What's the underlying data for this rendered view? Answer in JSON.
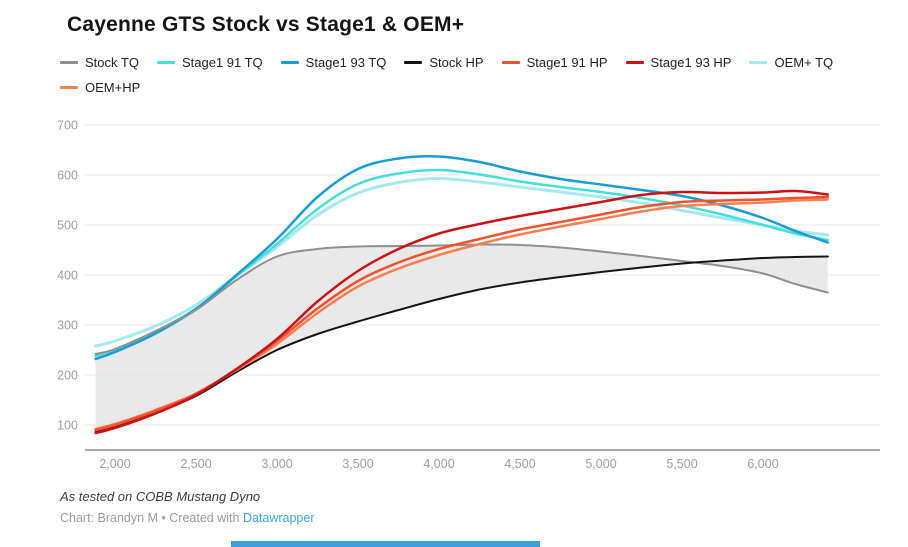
{
  "header": {
    "title": "Cayenne GTS Stock vs Stage1 & OEM+"
  },
  "footer": {
    "note": "As tested on COBB Mustang Dyno",
    "byline_prefix": "Chart: Brandyn M • Created with ",
    "link_label": "Datawrapper"
  },
  "colors": {
    "grid": "#e8e8e8",
    "axis": "#555555",
    "tick_label": "#9e9e9e",
    "link": "#3da5dc",
    "accent_bar": "#3f9fdb",
    "band_fill": "#e3e3e3"
  },
  "chart_data": {
    "type": "line",
    "title": "Cayenne GTS Stock vs Stage1 & OEM+",
    "xlabel": "",
    "ylabel": "",
    "grid": true,
    "legend_position": "top",
    "xlim": [
      1880,
      6720
    ],
    "ylim": [
      50,
      700
    ],
    "y_ticks": [
      100,
      200,
      300,
      400,
      500,
      600,
      700
    ],
    "x_ticks": [
      {
        "value": 2000,
        "label": "2,000"
      },
      {
        "value": 2500,
        "label": "2,500"
      },
      {
        "value": 3000,
        "label": "3,000"
      },
      {
        "value": 3500,
        "label": "3,500"
      },
      {
        "value": 4000,
        "label": "4,000"
      },
      {
        "value": 4500,
        "label": "4,500"
      },
      {
        "value": 5000,
        "label": "5,000"
      },
      {
        "value": 5500,
        "label": "5,500"
      },
      {
        "value": 6000,
        "label": "6,000"
      }
    ],
    "band": {
      "upper": "Stock TQ",
      "lower": "Stock HP",
      "color": "#e3e3e3"
    },
    "x": [
      1880,
      2000,
      2250,
      2500,
      2750,
      3000,
      3250,
      3500,
      3750,
      4000,
      4250,
      4500,
      4750,
      5000,
      5250,
      5500,
      5750,
      6000,
      6200,
      6400
    ],
    "series": [
      {
        "name": "Stock TQ",
        "color": "#8f8f8f",
        "width": 2,
        "values": [
          242,
          252,
          288,
          330,
          390,
          437,
          452,
          457,
          458,
          459,
          461,
          460,
          455,
          447,
          438,
          428,
          418,
          403,
          382,
          365
        ]
      },
      {
        "name": "Stage1 91 TQ",
        "color": "#43dfd8",
        "width": 2.5,
        "values": [
          238,
          250,
          287,
          333,
          398,
          462,
          532,
          582,
          603,
          610,
          601,
          587,
          576,
          566,
          554,
          539,
          521,
          500,
          483,
          470
        ]
      },
      {
        "name": "Stage1 93 TQ",
        "color": "#189bd9",
        "width": 2.5,
        "values": [
          232,
          246,
          283,
          332,
          400,
          472,
          556,
          612,
          633,
          637,
          626,
          607,
          592,
          581,
          570,
          558,
          539,
          514,
          488,
          465
        ]
      },
      {
        "name": "Stock HP",
        "color": "#141414",
        "width": 2,
        "values": [
          86,
          96,
          124,
          158,
          206,
          250,
          282,
          307,
          330,
          352,
          371,
          385,
          396,
          406,
          415,
          423,
          429,
          434,
          436,
          437
        ]
      },
      {
        "name": "Stage1 91 HP",
        "color": "#f0512e",
        "width": 2.5,
        "values": [
          90,
          100,
          128,
          162,
          212,
          268,
          333,
          388,
          425,
          452,
          472,
          491,
          506,
          521,
          536,
          546,
          549,
          551,
          554,
          556
        ]
      },
      {
        "name": "Stage1 93 HP",
        "color": "#cd1216",
        "width": 2.5,
        "values": [
          84,
          94,
          123,
          160,
          212,
          272,
          347,
          408,
          452,
          483,
          502,
          518,
          532,
          546,
          560,
          566,
          564,
          565,
          568,
          561
        ]
      },
      {
        "name": "OEM+ TQ",
        "color": "#a4e9f1",
        "width": 3,
        "values": [
          258,
          268,
          298,
          340,
          398,
          456,
          520,
          564,
          585,
          593,
          586,
          576,
          566,
          556,
          544,
          529,
          514,
          500,
          488,
          480
        ]
      },
      {
        "name": "OEM+HP",
        "color": "#f87f4f",
        "width": 2.5,
        "values": [
          92,
          102,
          130,
          163,
          210,
          262,
          324,
          377,
          413,
          440,
          462,
          481,
          497,
          512,
          527,
          538,
          542,
          545,
          549,
          551
        ]
      }
    ]
  }
}
